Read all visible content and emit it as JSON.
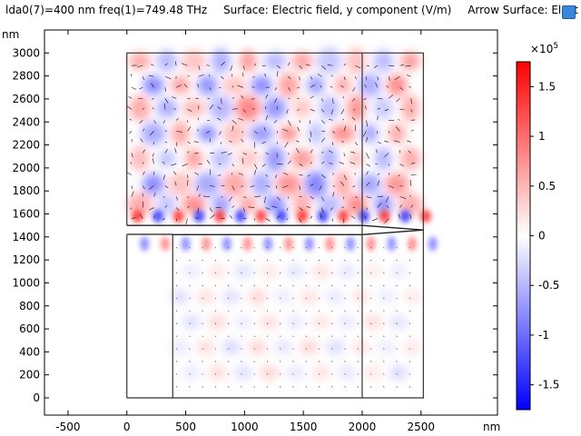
{
  "title": {
    "parts": [
      "lda0(7)=400 nm freq(1)=749.48 THz",
      "Surface: Electric field, y component (V/m)",
      "Arrow Surface: Elect"
    ]
  },
  "axes": {
    "unit_x": "nm",
    "unit_y": "nm",
    "x_ticks": [
      -500,
      0,
      500,
      1000,
      1500,
      2000,
      2500
    ],
    "y_ticks": [
      0,
      200,
      400,
      600,
      800,
      1000,
      1200,
      1400,
      1600,
      1800,
      2000,
      2200,
      2400,
      2600,
      2800,
      3000
    ],
    "xlim": [
      -700,
      3150
    ],
    "ylim": [
      -150,
      3200
    ]
  },
  "colorbar": {
    "multiplier": "×10",
    "exponent": "5",
    "ticks": [
      1.5,
      1,
      0.5,
      0,
      -0.5,
      -1,
      -1.5
    ],
    "tick_labels": [
      "1.5",
      "1",
      "0.5",
      "0",
      "-0.5",
      "-1",
      "-1.5"
    ],
    "range": [
      -1.75,
      1.75
    ],
    "color_max": "#ff0000",
    "color_mid": "#ffffff",
    "color_min": "#0000ff"
  },
  "geometry": {
    "outer_box": [
      0,
      0,
      2520,
      3000
    ],
    "upper_region": [
      0,
      1500,
      2520,
      3000
    ],
    "substrate": [
      390,
      0,
      2520,
      1420
    ],
    "waveguide_top": 1500,
    "waveguide_bottom": 1420,
    "taper_start_x": 2000,
    "taper_tip_x": 2520,
    "taper_tip_y": 1460,
    "vertical_line_x": 2000
  },
  "icons": {
    "corner": "window-icon"
  }
}
